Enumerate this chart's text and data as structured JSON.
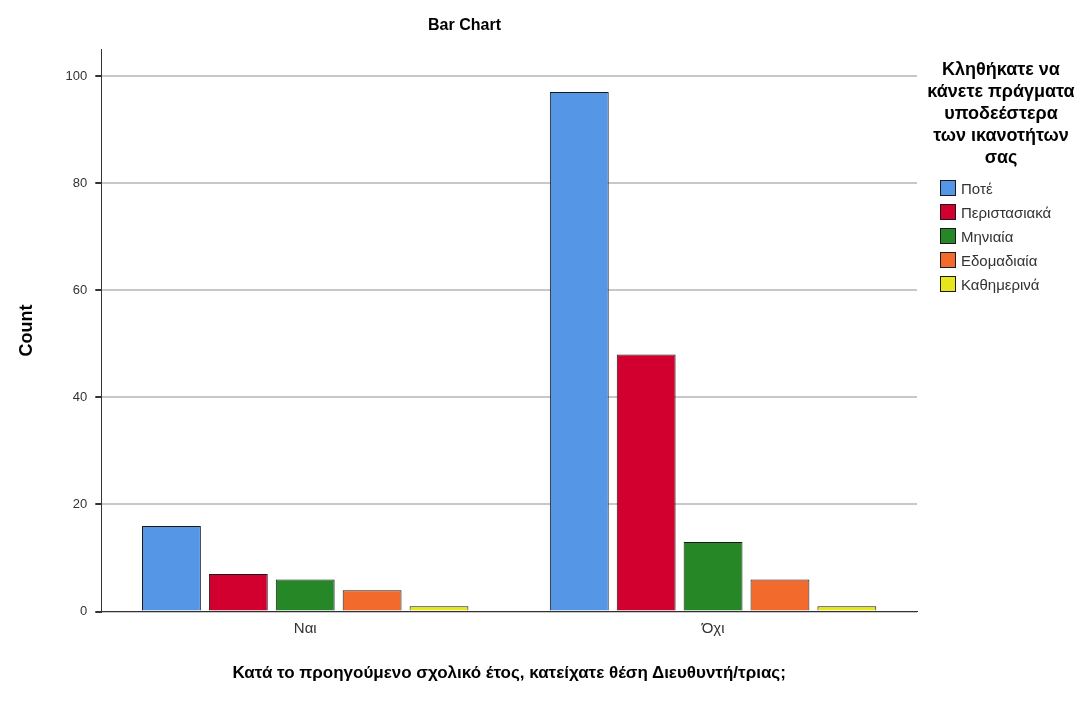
{
  "chart_data": {
    "type": "bar",
    "title": "Bar Chart",
    "xlabel": "Κατά το προηγούμενο σχολικό έτος, κατείχατε θέση Διευθυντή/τριας;",
    "ylabel": "Count",
    "legend_title": "Κληθήκατε να κάνετε πράγματα υποδεέστερα των ικανοτήτων σας",
    "categories": [
      "Ναι",
      "Όχι"
    ],
    "series": [
      {
        "name": "Ποτέ",
        "color": "#5596e6",
        "values": [
          16,
          97
        ]
      },
      {
        "name": "Περιστασιακά",
        "color": "#d1002f",
        "values": [
          7,
          48
        ]
      },
      {
        "name": "Μηνιαία",
        "color": "#268726",
        "values": [
          6,
          13
        ]
      },
      {
        "name": "Εδομαδιαία",
        "color": "#f26b2c",
        "values": [
          4,
          6
        ]
      },
      {
        "name": "Καθημερινά",
        "color": "#e6e61a",
        "values": [
          1,
          1
        ]
      }
    ],
    "ylim": [
      0,
      105
    ],
    "yticks": [
      0,
      20,
      40,
      60,
      80,
      100
    ],
    "grid": "y",
    "legend": "right"
  }
}
